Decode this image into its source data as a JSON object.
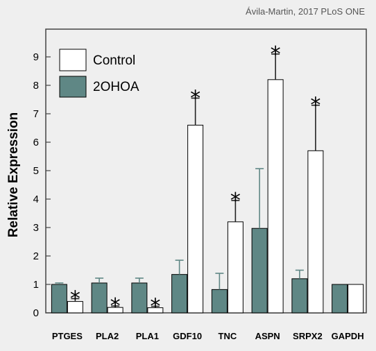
{
  "credit": "Ávila-Martin, 2017 PLoS ONE",
  "chart_data": {
    "type": "bar",
    "ylabel": "Relative Expression",
    "xlabel": "",
    "ylim": [
      0,
      9.8
    ],
    "yticks": [
      "0",
      "1",
      "2",
      "3",
      "4",
      "5",
      "6",
      "7",
      "8",
      "9"
    ],
    "categories": [
      "PTGES",
      "PLA2",
      "PLA1",
      "GDF10",
      "TNC",
      "ASPN",
      "SRPX2",
      "GAPDH"
    ],
    "series": [
      {
        "name": "2OHOA",
        "color": "#5f8785",
        "values": [
          1.0,
          1.05,
          1.05,
          1.35,
          0.82,
          2.97,
          1.2,
          1.0
        ],
        "errors": [
          0.05,
          0.17,
          0.17,
          0.5,
          0.57,
          2.1,
          0.3,
          0.0
        ]
      },
      {
        "name": "Control",
        "color": "#ffffff",
        "values": [
          0.4,
          0.19,
          0.18,
          6.6,
          3.2,
          8.2,
          5.7,
          1.0
        ],
        "errors": [
          0.1,
          0.05,
          0.05,
          0.95,
          0.75,
          0.9,
          1.6,
          0.0
        ]
      }
    ],
    "significance": [
      "*",
      "*",
      "*",
      "*",
      "*",
      "*",
      "*",
      ""
    ],
    "legend_placement": "top-left"
  }
}
